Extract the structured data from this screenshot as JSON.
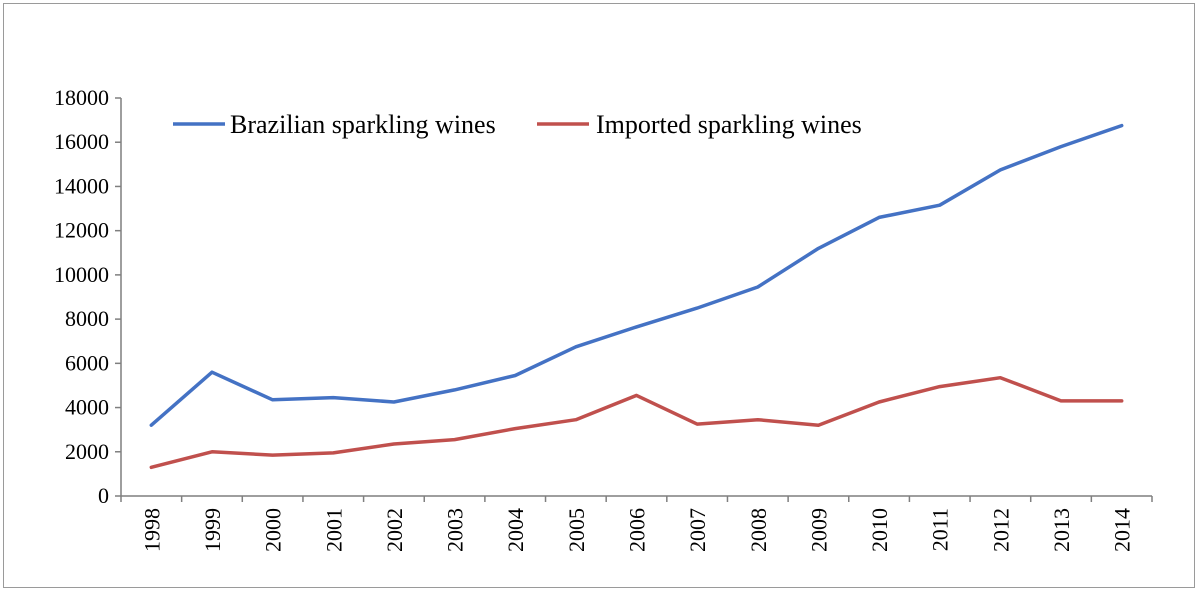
{
  "chart_data": {
    "type": "line",
    "title": "",
    "xlabel": "",
    "ylabel": "",
    "x": [
      "1998",
      "1999",
      "2000",
      "2001",
      "2002",
      "2003",
      "2004",
      "2005",
      "2006",
      "2007",
      "2008",
      "2009",
      "2010",
      "2011",
      "2012",
      "2013",
      "2014"
    ],
    "ylim": [
      0,
      18000
    ],
    "yticks": [
      0,
      2000,
      4000,
      6000,
      8000,
      10000,
      12000,
      14000,
      16000,
      18000
    ],
    "ytick_labels": [
      "0",
      "2000",
      "4000",
      "6000",
      "8000",
      "10000",
      "12000",
      "14000",
      "16000",
      "18000"
    ],
    "grid": false,
    "legend_position": "top-left",
    "series": [
      {
        "name": "Brazilian sparkling wines",
        "color": "#4472C4",
        "values": [
          3200,
          5600,
          4350,
          4450,
          4250,
          4800,
          5450,
          6750,
          7650,
          8500,
          9450,
          11200,
          12600,
          13150,
          14750,
          15800,
          16750
        ]
      },
      {
        "name": "Imported sparkling wines",
        "color": "#C0504D",
        "values": [
          1300,
          2000,
          1850,
          1950,
          2350,
          2550,
          3050,
          3450,
          4550,
          3250,
          3450,
          3200,
          4250,
          4950,
          5350,
          4300,
          4300
        ]
      }
    ]
  }
}
